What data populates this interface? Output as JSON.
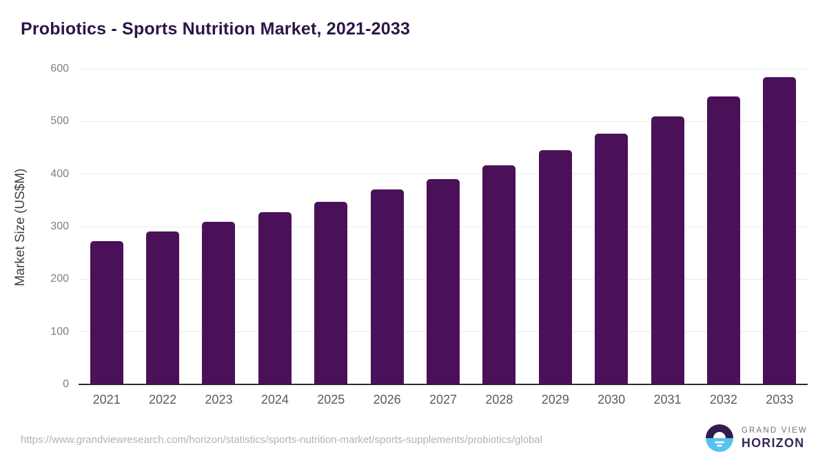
{
  "header": {
    "title": "Probiotics - Sports Nutrition Market, 2021-2033"
  },
  "chart_data": {
    "type": "bar",
    "title": "Probiotics - Sports Nutrition Market, 2021-2033",
    "categories": [
      "2021",
      "2022",
      "2023",
      "2024",
      "2025",
      "2026",
      "2027",
      "2028",
      "2029",
      "2030",
      "2031",
      "2032",
      "2033"
    ],
    "values": [
      272,
      291,
      309,
      327,
      347,
      371,
      390,
      417,
      446,
      477,
      509,
      547,
      584
    ],
    "xlabel": "",
    "ylabel": "Market Size (US$M)",
    "ylim": [
      0,
      600
    ],
    "yticks": [
      0,
      100,
      200,
      300,
      400,
      500,
      600
    ],
    "grid": "horizontal-only",
    "legend": "none",
    "bar_color": "#4a1158"
  },
  "footer": {
    "source_url": "https://www.grandviewresearch.com/horizon/statistics/sports-nutrition-market/sports-supplements/probiotics/global",
    "logo": {
      "top_text": "GRAND VIEW",
      "bottom_text": "HORIZON"
    }
  },
  "colors": {
    "title": "#2c1547",
    "bar": "#4a1158",
    "gridline": "#e9e9e9",
    "axis_line": "#2b2b2b",
    "y_tick_label": "#7f7f7f",
    "x_tick_label": "#5a5a5a",
    "source_url": "#b2b2b2",
    "logo_purple": "#331c4d",
    "logo_blue": "#56c2ee"
  }
}
